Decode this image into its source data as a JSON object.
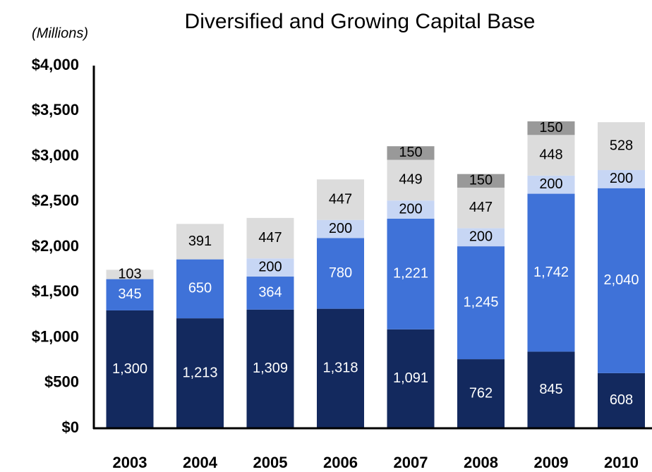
{
  "chart_data": {
    "type": "stacked_bar",
    "title": "Diversified and Growing Capital Base",
    "subtitle": "(Millions)",
    "categories": [
      "2003",
      "2004",
      "2005",
      "2006",
      "2007",
      "2008",
      "2009",
      "2010"
    ],
    "series": [
      {
        "color": "#13295e",
        "values": [
          1300,
          1213,
          1309,
          1318,
          1091,
          762,
          845,
          608
        ],
        "value_labels": [
          "1,300",
          "1,213",
          "1,309",
          "1,318",
          "1,091",
          "762",
          "845",
          "608"
        ]
      },
      {
        "color": "#3f72d8",
        "values": [
          345,
          650,
          364,
          780,
          1221,
          1245,
          1742,
          2040
        ],
        "value_labels": [
          "345",
          "650",
          "364",
          "780",
          "1,221",
          "1,245",
          "1,742",
          "2,040"
        ]
      },
      {
        "color": "#c7d6f4",
        "values": [
          null,
          null,
          200,
          200,
          200,
          200,
          200,
          200
        ]
      },
      {
        "color": "#dcdcdc",
        "values": [
          103,
          391,
          447,
          447,
          449,
          447,
          448,
          528
        ]
      },
      {
        "color": "#999999",
        "values": [
          null,
          null,
          null,
          null,
          150,
          150,
          150,
          null
        ]
      }
    ],
    "ylim": [
      0,
      4000
    ],
    "yticks": [
      {
        "value": 0,
        "label": "$0"
      },
      {
        "value": 500,
        "label": "$500"
      },
      {
        "value": 1000,
        "label": "$1,000"
      },
      {
        "value": 1500,
        "label": "$1,500"
      },
      {
        "value": 2000,
        "label": "$2,000"
      },
      {
        "value": 2500,
        "label": "$2,500"
      },
      {
        "value": 3000,
        "label": "$3,000"
      },
      {
        "value": 3500,
        "label": "$3,500"
      },
      {
        "value": 4000,
        "label": "$4,000"
      }
    ],
    "grid": false
  }
}
